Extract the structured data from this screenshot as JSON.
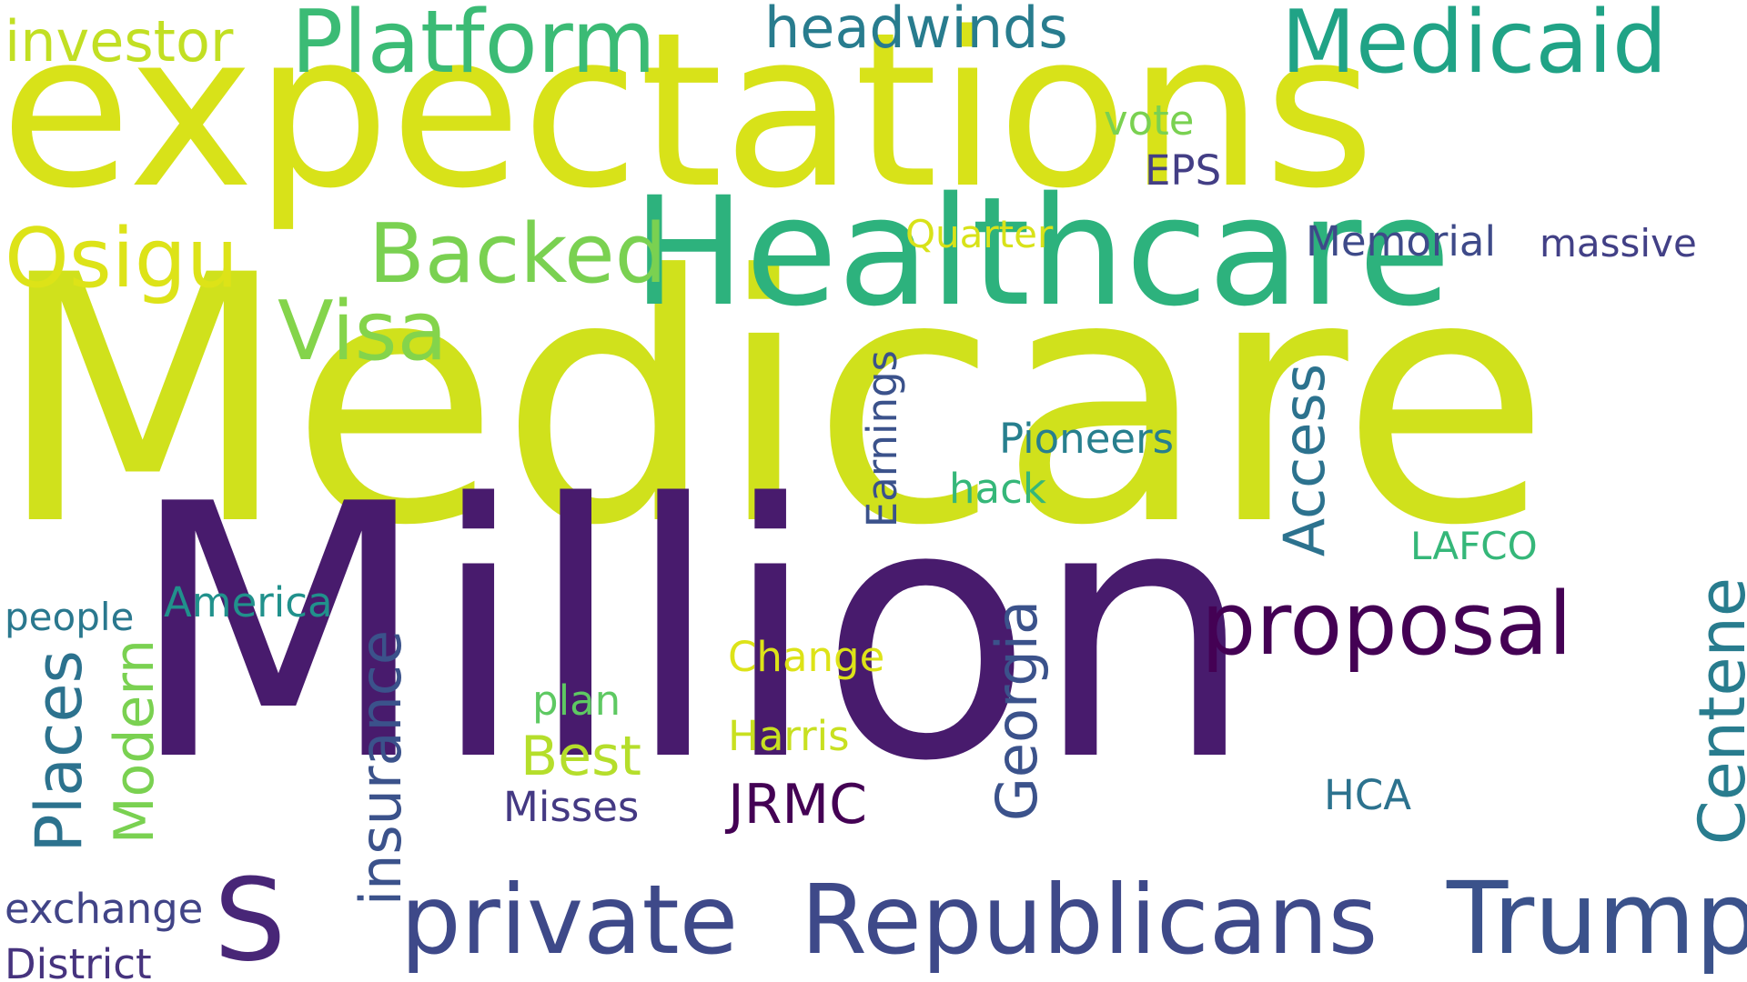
{
  "words": [
    {
      "id": "medicare",
      "text": "Medicare",
      "color": "#d0e11c",
      "vertical": false
    },
    {
      "id": "million",
      "text": "Million",
      "color": "#481b6d",
      "vertical": false
    },
    {
      "id": "expectations",
      "text": "expectations",
      "color": "#d8e219",
      "vertical": false
    },
    {
      "id": "healthcare",
      "text": "Healthcare",
      "color": "#2db27d",
      "vertical": false
    },
    {
      "id": "medicaid",
      "text": "Medicaid",
      "color": "#20a386",
      "vertical": false
    },
    {
      "id": "platform",
      "text": "Platform",
      "color": "#3bbb75",
      "vertical": false
    },
    {
      "id": "republicans",
      "text": "Republicans",
      "color": "#3e4989",
      "vertical": false
    },
    {
      "id": "private",
      "text": "private",
      "color": "#3e4989",
      "vertical": false
    },
    {
      "id": "trump",
      "text": "Trump",
      "color": "#3b528b",
      "vertical": false
    },
    {
      "id": "proposal",
      "text": "proposal",
      "color": "#440154",
      "vertical": false
    },
    {
      "id": "backed",
      "text": "Backed",
      "color": "#7ad151",
      "vertical": false
    },
    {
      "id": "osigu",
      "text": "Osigu",
      "color": "#dde318",
      "vertical": false
    },
    {
      "id": "visa",
      "text": "Visa",
      "color": "#84d44b",
      "vertical": false
    },
    {
      "id": "s",
      "text": "S",
      "color": "#482677",
      "vertical": false
    },
    {
      "id": "investor",
      "text": "investor",
      "color": "#c2df23",
      "vertical": false
    },
    {
      "id": "headwinds",
      "text": "headwinds",
      "color": "#287c8e",
      "vertical": false
    },
    {
      "id": "vote",
      "text": "vote",
      "color": "#7ad151",
      "vertical": false
    },
    {
      "id": "eps",
      "text": "EPS",
      "color": "#433e85",
      "vertical": false
    },
    {
      "id": "quarter",
      "text": "Quarter",
      "color": "#d8e219",
      "vertical": false
    },
    {
      "id": "memorial",
      "text": "Memorial",
      "color": "#3e4a89",
      "vertical": false
    },
    {
      "id": "massive",
      "text": "massive",
      "color": "#424086",
      "vertical": false
    },
    {
      "id": "pioneers",
      "text": "Pioneers",
      "color": "#277f8e",
      "vertical": false
    },
    {
      "id": "hack",
      "text": "hack",
      "color": "#35b779",
      "vertical": false
    },
    {
      "id": "lafco",
      "text": "LAFCO",
      "color": "#35b779",
      "vertical": false
    },
    {
      "id": "america",
      "text": "America",
      "color": "#21918c",
      "vertical": false
    },
    {
      "id": "people",
      "text": "people",
      "color": "#2a788e",
      "vertical": false
    },
    {
      "id": "change",
      "text": "Change",
      "color": "#dde318",
      "vertical": false
    },
    {
      "id": "plan",
      "text": "plan",
      "color": "#5ec962",
      "vertical": false
    },
    {
      "id": "harris",
      "text": "Harris",
      "color": "#c8e020",
      "vertical": false
    },
    {
      "id": "best",
      "text": "Best",
      "color": "#b5de2b",
      "vertical": false
    },
    {
      "id": "jrmc",
      "text": "JRMC",
      "color": "#440154",
      "vertical": false
    },
    {
      "id": "misses",
      "text": "Misses",
      "color": "#443983",
      "vertical": false
    },
    {
      "id": "hca",
      "text": "HCA",
      "color": "#2c728e",
      "vertical": false
    },
    {
      "id": "exchange",
      "text": "exchange",
      "color": "#414487",
      "vertical": false
    },
    {
      "id": "district",
      "text": "District",
      "color": "#46337e",
      "vertical": false
    },
    {
      "id": "earnings",
      "text": "Earnings",
      "color": "#3b528b",
      "vertical": true
    },
    {
      "id": "access",
      "text": "Access",
      "color": "#2c728e",
      "vertical": true
    },
    {
      "id": "georgia",
      "text": "Georgia",
      "color": "#3b528b",
      "vertical": true
    },
    {
      "id": "insurance",
      "text": "insurance",
      "color": "#3b528b",
      "vertical": true
    },
    {
      "id": "modern",
      "text": "Modern",
      "color": "#7ad151",
      "vertical": true
    },
    {
      "id": "places",
      "text": "Places",
      "color": "#2c728e",
      "vertical": true
    },
    {
      "id": "centene",
      "text": "Centene",
      "color": "#287c8e",
      "vertical": true
    }
  ]
}
